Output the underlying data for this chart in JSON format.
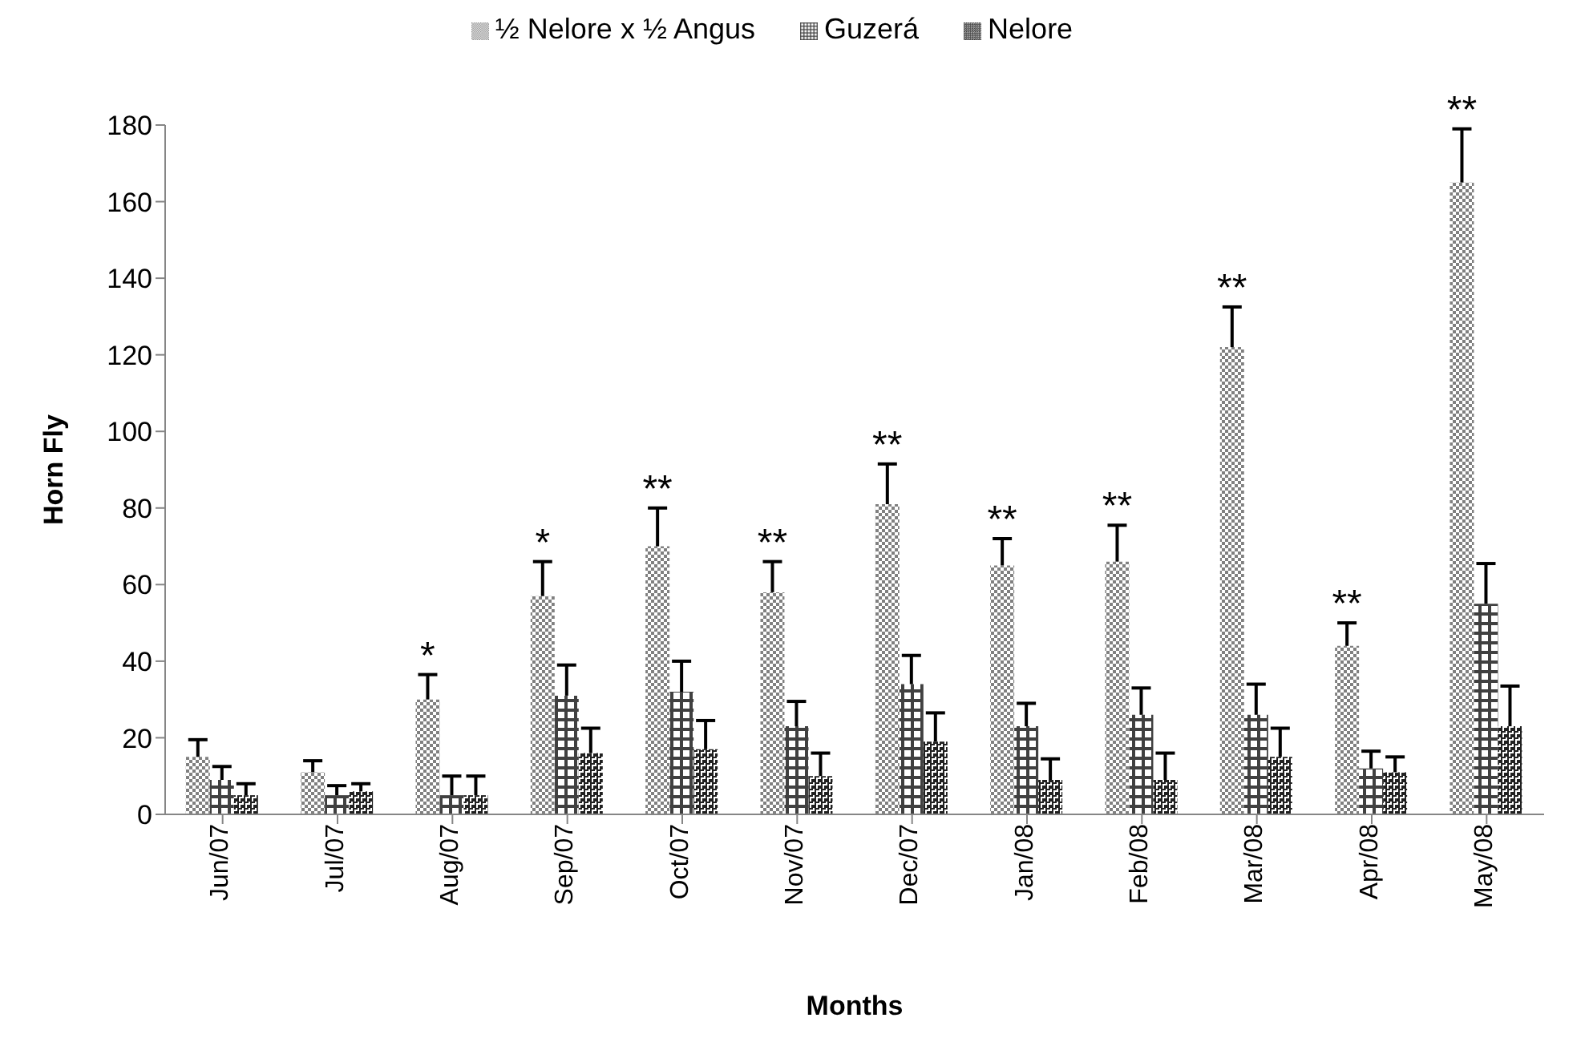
{
  "chart_data": {
    "type": "bar",
    "xlabel": "Months",
    "ylabel": "Horn Fly",
    "categories": [
      "Jun/07",
      "Jul/07",
      "Aug/07",
      "Sep/07",
      "Oct/07",
      "Nov/07",
      "Dec/07",
      "Jan/08",
      "Feb/08",
      "Mar/08",
      "Apr/08",
      "May/08"
    ],
    "series": [
      {
        "name": "½ Nelore x ½ Angus",
        "color": "#808080",
        "values": [
          15,
          11,
          30,
          57,
          70,
          58,
          81,
          65,
          66,
          122,
          44,
          165
        ],
        "value_labels": [
          null,
          null,
          "*",
          "*",
          "**",
          "**",
          "**",
          "**",
          "**",
          "**",
          "**",
          "**"
        ],
        "errors": [
          [
            15,
            19.5
          ],
          [
            11,
            14
          ],
          [
            30,
            36.5
          ],
          [
            57,
            66
          ],
          [
            70,
            80
          ],
          [
            58,
            66
          ],
          [
            81,
            91.5
          ],
          [
            65,
            72
          ],
          [
            66,
            75.5
          ],
          [
            122,
            132.5
          ],
          [
            44,
            50
          ],
          [
            165,
            179
          ]
        ]
      },
      {
        "name": "Guzerá",
        "color": "#404040",
        "values": [
          9,
          5,
          5,
          31,
          32,
          23,
          34,
          23,
          26,
          26,
          12,
          55
        ],
        "errors": [
          [
            9,
            12.5
          ],
          [
            5,
            7.5
          ],
          [
            5,
            10
          ],
          [
            31,
            39
          ],
          [
            32,
            40
          ],
          [
            23,
            29.5
          ],
          [
            34,
            41.5
          ],
          [
            23,
            29
          ],
          [
            26,
            33
          ],
          [
            26,
            34
          ],
          [
            12,
            16.5
          ],
          [
            55,
            65.5
          ]
        ]
      },
      {
        "name": "Nelore",
        "color": "#202020",
        "values": [
          5,
          6,
          5,
          16,
          17,
          10,
          19,
          9,
          9,
          15,
          11,
          23
        ],
        "errors": [
          [
            5,
            8
          ],
          [
            6,
            8
          ],
          [
            5,
            10
          ],
          [
            16,
            22.5
          ],
          [
            17,
            24.5
          ],
          [
            10,
            16
          ],
          [
            19,
            26.5
          ],
          [
            9,
            14.5
          ],
          [
            9,
            16
          ],
          [
            15,
            22.5
          ],
          [
            11,
            15
          ],
          [
            23,
            33.5
          ]
        ]
      }
    ],
    "ylim": [
      0,
      180
    ],
    "yticks": [
      0,
      20,
      40,
      60,
      80,
      100,
      120,
      140,
      160,
      180
    ],
    "grid": false,
    "legend": "top"
  }
}
